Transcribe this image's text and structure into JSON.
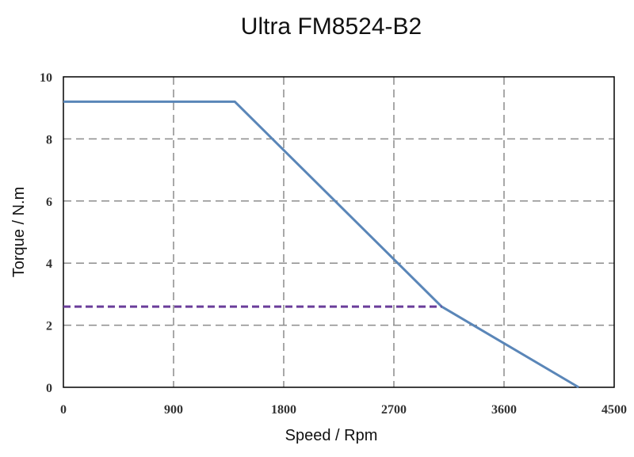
{
  "chart_data": {
    "type": "line",
    "title": "Ultra FM8524-B2",
    "xlabel": "Speed / Rpm",
    "ylabel": "Torque / N.m",
    "xlim": [
      0,
      4500
    ],
    "ylim": [
      0,
      10
    ],
    "x_ticks": [
      0,
      900,
      1800,
      2700,
      3600,
      4500
    ],
    "y_ticks": [
      0,
      2,
      4,
      6,
      8,
      10
    ],
    "grid": true,
    "series": [
      {
        "style": "solid",
        "color": "#5a86b8",
        "x": [
          0,
          1400,
          3090,
          4210
        ],
        "y": [
          9.2,
          9.2,
          2.6,
          0
        ]
      },
      {
        "style": "dashed",
        "color": "#6a3d9a",
        "x": [
          0,
          3090
        ],
        "y": [
          2.6,
          2.6
        ]
      }
    ]
  }
}
